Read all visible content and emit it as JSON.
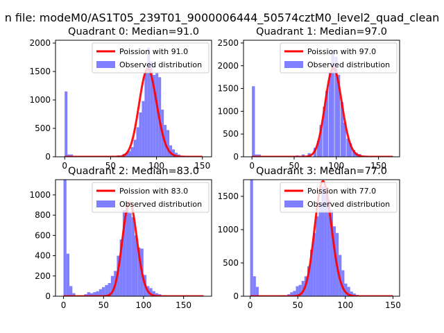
{
  "suptitle": "n file: modeM0/AS1T05_239T01_9000006444_50574cztM0_level2_quad_clean",
  "colors": {
    "bars": "#7f7fff",
    "poisson": "#ff0000",
    "frame": "#000000",
    "legend_bg": "#ffffff"
  },
  "chart_data": [
    {
      "type": "bar",
      "title": "Quadrant 0: Median=91.0",
      "xlim": [
        -10,
        160
      ],
      "ylim": [
        0,
        2050
      ],
      "xticks": [
        0,
        50,
        100,
        150
      ],
      "yticks": [
        0,
        500,
        1000,
        1500,
        2000
      ],
      "legend": {
        "position": "top-right",
        "entries": [
          "Poission with 91.0",
          "Observed distribution"
        ]
      },
      "hist": {
        "bin_width": 3,
        "bins": [
          [
            0,
            1150
          ],
          [
            3,
            40
          ],
          [
            6,
            40
          ],
          [
            45,
            10
          ],
          [
            51,
            20
          ],
          [
            57,
            25
          ],
          [
            63,
            50
          ],
          [
            66,
            70
          ],
          [
            69,
            100
          ],
          [
            72,
            170
          ],
          [
            75,
            300
          ],
          [
            78,
            520
          ],
          [
            81,
            780
          ],
          [
            84,
            980
          ],
          [
            87,
            1520
          ],
          [
            90,
            1920
          ],
          [
            93,
            1680
          ],
          [
            96,
            1440
          ],
          [
            99,
            1480
          ],
          [
            102,
            1400
          ],
          [
            105,
            830
          ],
          [
            108,
            560
          ],
          [
            111,
            470
          ],
          [
            114,
            200
          ],
          [
            117,
            130
          ],
          [
            120,
            70
          ],
          [
            123,
            40
          ],
          [
            126,
            20
          ],
          [
            129,
            10
          ]
        ]
      },
      "poisson": {
        "lambda": 91,
        "scale": 37000,
        "x_range": [
          0,
          150
        ]
      }
    },
    {
      "type": "bar",
      "title": "Quadrant 1: Median=97.0",
      "xlim": [
        -10,
        175
      ],
      "ylim": [
        0,
        2560
      ],
      "xticks": [
        0,
        50,
        100,
        150
      ],
      "yticks": [
        0,
        500,
        1000,
        1500,
        2000,
        2500
      ],
      "legend": {
        "position": "top-right",
        "entries": [
          "Poission with 97.0",
          "Observed distribution"
        ]
      },
      "hist": {
        "bin_width": 3.5,
        "bins": [
          [
            0,
            1550
          ],
          [
            3.5,
            50
          ],
          [
            7,
            50
          ],
          [
            52,
            30
          ],
          [
            59,
            50
          ],
          [
            66,
            80
          ],
          [
            73,
            200
          ],
          [
            77,
            350
          ],
          [
            80,
            700
          ],
          [
            84,
            1100
          ],
          [
            87,
            1450
          ],
          [
            91,
            1850
          ],
          [
            94,
            2350
          ],
          [
            98,
            2200
          ],
          [
            101,
            1800
          ],
          [
            105,
            1200
          ],
          [
            108,
            750
          ],
          [
            112,
            400
          ],
          [
            115,
            300
          ],
          [
            119,
            150
          ],
          [
            122,
            90
          ],
          [
            126,
            60
          ],
          [
            129,
            30
          ],
          [
            133,
            10
          ]
        ]
      },
      "poisson": {
        "lambda": 97,
        "scale": 48200,
        "x_range": [
          0,
          167
        ]
      }
    },
    {
      "type": "bar",
      "title": "Quadrant 2: Median=83.0",
      "xlim": [
        -10,
        185
      ],
      "ylim": [
        0,
        1150
      ],
      "xticks": [
        0,
        50,
        100,
        150
      ],
      "yticks": [
        0,
        200,
        400,
        600,
        800,
        1000
      ],
      "legend": {
        "position": "top-right",
        "entries": [
          "Poission with 83.0",
          "Observed distribution"
        ]
      },
      "hist": {
        "bin_width": 3.7,
        "bins": [
          [
            0,
            1150
          ],
          [
            3.7,
            420
          ],
          [
            7.4,
            100
          ],
          [
            11.1,
            30
          ],
          [
            18.5,
            10
          ],
          [
            25.9,
            20
          ],
          [
            29.6,
            40
          ],
          [
            33.3,
            30
          ],
          [
            37,
            40
          ],
          [
            40.7,
            50
          ],
          [
            44.4,
            70
          ],
          [
            48.1,
            90
          ],
          [
            51.8,
            110
          ],
          [
            55.5,
            130
          ],
          [
            59.2,
            200
          ],
          [
            62.9,
            250
          ],
          [
            66.6,
            400
          ],
          [
            70.3,
            560
          ],
          [
            74,
            850
          ],
          [
            77.7,
            900
          ],
          [
            81.4,
            820
          ],
          [
            85.1,
            780
          ],
          [
            88.8,
            600
          ],
          [
            92.5,
            480
          ],
          [
            96.2,
            470
          ],
          [
            99.9,
            210
          ],
          [
            103.6,
            100
          ],
          [
            107.3,
            80
          ],
          [
            111,
            50
          ],
          [
            114.7,
            30
          ],
          [
            118.4,
            20
          ]
        ]
      },
      "poisson": {
        "lambda": 83,
        "scale": 21150,
        "x_range": [
          0,
          175
        ]
      }
    },
    {
      "type": "bar",
      "title": "Quadrant 3: Median=77.0",
      "xlim": [
        -7,
        157
      ],
      "ylim": [
        0,
        1750
      ],
      "xticks": [
        0,
        50,
        100,
        150
      ],
      "yticks": [
        0,
        500,
        1000,
        1500
      ],
      "legend": {
        "position": "top-right",
        "entries": [
          "Poission with 77.0",
          "Observed distribution"
        ]
      },
      "hist": {
        "bin_width": 3,
        "bins": [
          [
            0,
            1750
          ],
          [
            3,
            300
          ],
          [
            6,
            140
          ],
          [
            33,
            10
          ],
          [
            39,
            30
          ],
          [
            42,
            60
          ],
          [
            45,
            80
          ],
          [
            48,
            150
          ],
          [
            51,
            170
          ],
          [
            54,
            230
          ],
          [
            57,
            300
          ],
          [
            60,
            450
          ],
          [
            63,
            700
          ],
          [
            66,
            950
          ],
          [
            69,
            1200
          ],
          [
            72,
            1400
          ],
          [
            75,
            1650
          ],
          [
            78,
            1620
          ],
          [
            81,
            1450
          ],
          [
            84,
            1300
          ],
          [
            87,
            1050
          ],
          [
            90,
            950
          ],
          [
            93,
            620
          ],
          [
            96,
            390
          ],
          [
            99,
            190
          ],
          [
            102,
            140
          ],
          [
            105,
            70
          ],
          [
            108,
            40
          ],
          [
            111,
            20
          ]
        ]
      },
      "poisson": {
        "lambda": 77,
        "scale": 38000,
        "x_range": [
          0,
          150
        ]
      }
    }
  ]
}
